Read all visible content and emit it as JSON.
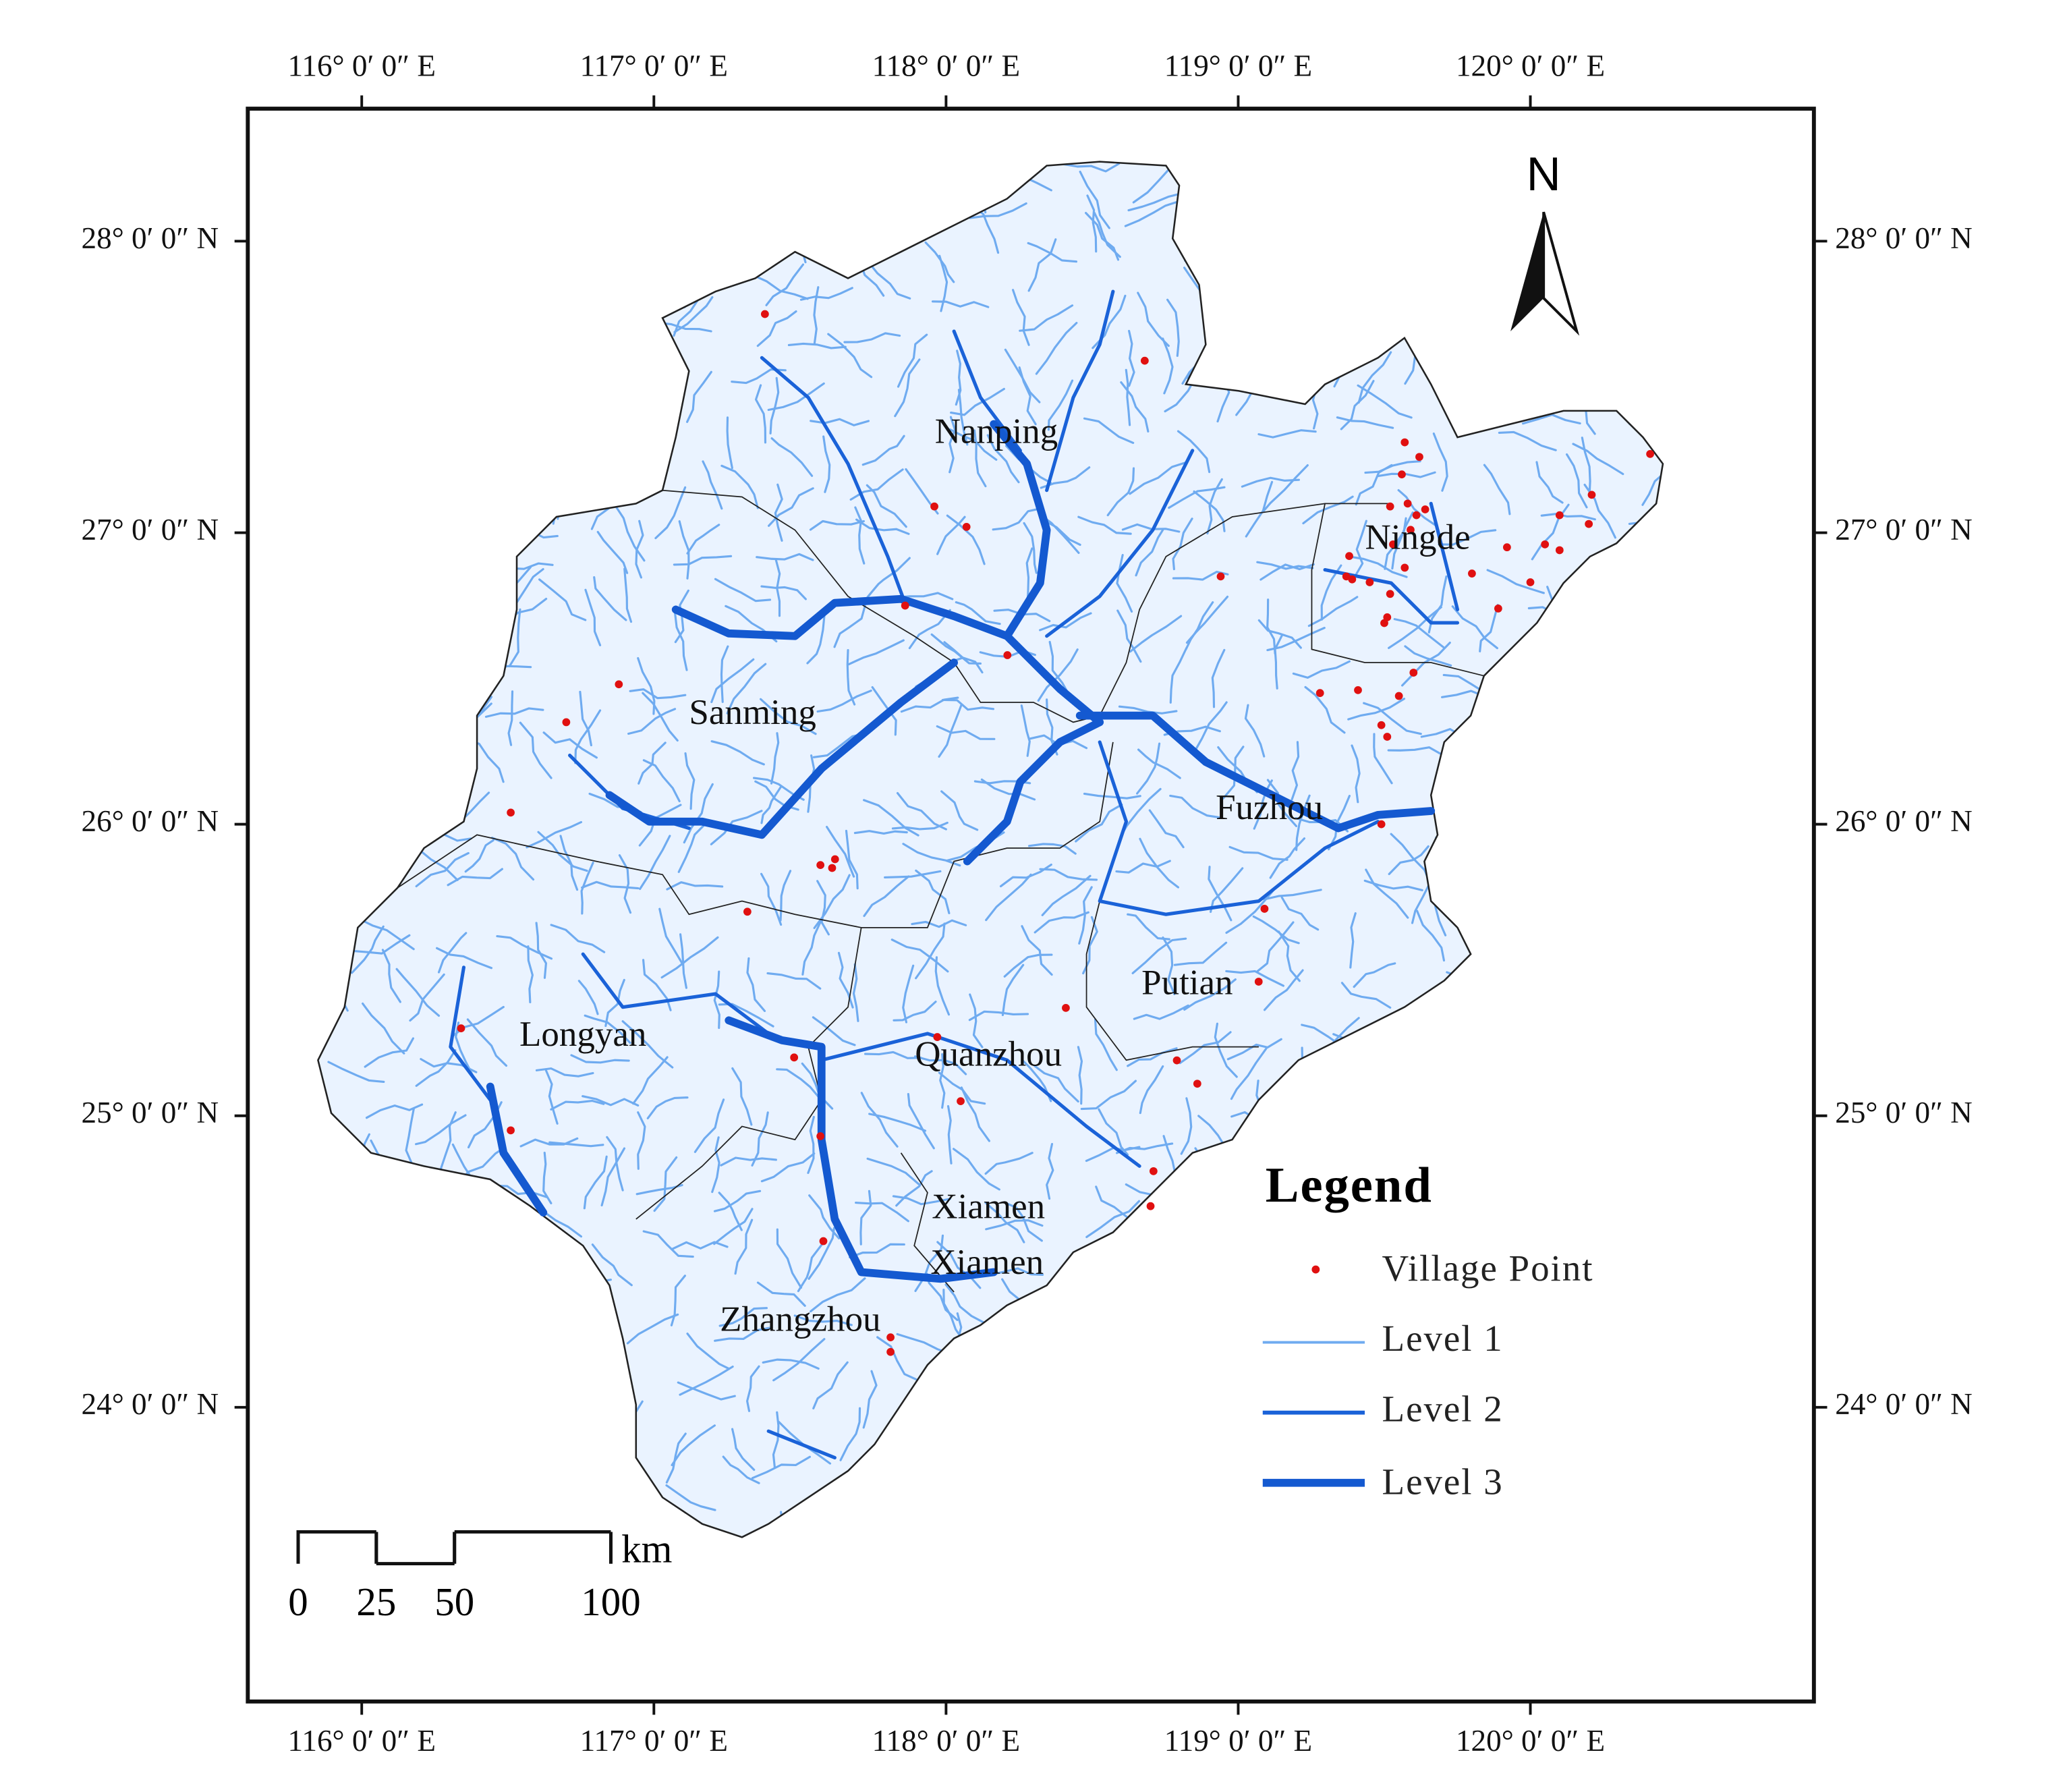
{
  "map": {
    "lon_ticks": [
      {
        "value": 116,
        "label": "116°  0′ 0″ E"
      },
      {
        "value": 117,
        "label": "117°  0′ 0″ E"
      },
      {
        "value": 118,
        "label": "118°  0′ 0″ E"
      },
      {
        "value": 119,
        "label": "119°  0′ 0″ E"
      },
      {
        "value": 120,
        "label": "120°  0′ 0″ E"
      }
    ],
    "lat_ticks": [
      {
        "value": 28,
        "label": "28°  0′ 0″ N"
      },
      {
        "value": 27,
        "label": "27°  0′ 0″ N"
      },
      {
        "value": 26,
        "label": "26°  0′ 0″ N"
      },
      {
        "value": 25,
        "label": "25°  0′ 0″ N"
      },
      {
        "value": 24,
        "label": "24°  0′ 0″ N"
      }
    ],
    "cities": [
      "Nanping",
      "Ningde",
      "Sanming",
      "Fuzhou",
      "Putian",
      "Longyan",
      "Quanzhou",
      "Xiamen",
      "Xiamen",
      "Zhangzhou"
    ],
    "villages": [
      {
        "lon": 117.38,
        "lat": 27.75
      },
      {
        "lon": 118.68,
        "lat": 27.59
      },
      {
        "lon": 117.96,
        "lat": 27.09
      },
      {
        "lon": 118.07,
        "lat": 27.02
      },
      {
        "lon": 117.86,
        "lat": 26.75
      },
      {
        "lon": 118.21,
        "lat": 26.58
      },
      {
        "lon": 116.88,
        "lat": 26.48
      },
      {
        "lon": 116.7,
        "lat": 26.35
      },
      {
        "lon": 116.51,
        "lat": 26.04
      },
      {
        "lon": 117.57,
        "lat": 25.86
      },
      {
        "lon": 117.62,
        "lat": 25.88
      },
      {
        "lon": 117.61,
        "lat": 25.85
      },
      {
        "lon": 117.32,
        "lat": 25.7
      },
      {
        "lon": 116.34,
        "lat": 25.3
      },
      {
        "lon": 116.51,
        "lat": 24.95
      },
      {
        "lon": 117.48,
        "lat": 25.2
      },
      {
        "lon": 117.57,
        "lat": 24.93
      },
      {
        "lon": 117.58,
        "lat": 24.57
      },
      {
        "lon": 117.81,
        "lat": 24.24
      },
      {
        "lon": 117.81,
        "lat": 24.19
      },
      {
        "lon": 117.97,
        "lat": 25.27
      },
      {
        "lon": 118.05,
        "lat": 25.05
      },
      {
        "lon": 118.41,
        "lat": 25.37
      },
      {
        "lon": 118.79,
        "lat": 25.19
      },
      {
        "lon": 118.86,
        "lat": 25.11
      },
      {
        "lon": 118.71,
        "lat": 24.81
      },
      {
        "lon": 118.7,
        "lat": 24.69
      },
      {
        "lon": 119.09,
        "lat": 25.71
      },
      {
        "lon": 119.07,
        "lat": 25.46
      },
      {
        "lon": 118.94,
        "lat": 26.85
      },
      {
        "lon": 119.49,
        "lat": 26.0
      },
      {
        "lon": 119.28,
        "lat": 26.45
      },
      {
        "lon": 119.41,
        "lat": 26.46
      },
      {
        "lon": 119.55,
        "lat": 26.44
      },
      {
        "lon": 119.49,
        "lat": 26.34
      },
      {
        "lon": 119.51,
        "lat": 26.3
      },
      {
        "lon": 119.6,
        "lat": 26.52
      },
      {
        "lon": 119.57,
        "lat": 27.31
      },
      {
        "lon": 119.62,
        "lat": 27.26
      },
      {
        "lon": 119.56,
        "lat": 27.2
      },
      {
        "lon": 119.52,
        "lat": 27.09
      },
      {
        "lon": 119.58,
        "lat": 27.1
      },
      {
        "lon": 119.61,
        "lat": 27.06
      },
      {
        "lon": 119.64,
        "lat": 27.08
      },
      {
        "lon": 119.59,
        "lat": 27.01
      },
      {
        "lon": 119.53,
        "lat": 26.96
      },
      {
        "lon": 119.57,
        "lat": 26.88
      },
      {
        "lon": 119.38,
        "lat": 26.92
      },
      {
        "lon": 119.37,
        "lat": 26.85
      },
      {
        "lon": 119.39,
        "lat": 26.84
      },
      {
        "lon": 119.45,
        "lat": 26.83
      },
      {
        "lon": 119.52,
        "lat": 26.79
      },
      {
        "lon": 119.51,
        "lat": 26.71
      },
      {
        "lon": 119.5,
        "lat": 26.69
      },
      {
        "lon": 119.8,
        "lat": 26.86
      },
      {
        "lon": 119.89,
        "lat": 26.74
      },
      {
        "lon": 119.92,
        "lat": 26.95
      },
      {
        "lon": 120.05,
        "lat": 26.96
      },
      {
        "lon": 120.1,
        "lat": 26.94
      },
      {
        "lon": 120.0,
        "lat": 26.83
      },
      {
        "lon": 120.1,
        "lat": 27.06
      },
      {
        "lon": 120.2,
        "lat": 27.03
      },
      {
        "lon": 120.21,
        "lat": 27.13
      },
      {
        "lon": 120.41,
        "lat": 27.27
      }
    ],
    "north_label": "N",
    "legend": {
      "title": "Legend",
      "items": [
        "Village Point",
        "Level 1",
        "Level 2",
        "Level 3"
      ]
    },
    "scale_bar": {
      "ticks": [
        0,
        25,
        50,
        100
      ],
      "unit": "km"
    }
  }
}
